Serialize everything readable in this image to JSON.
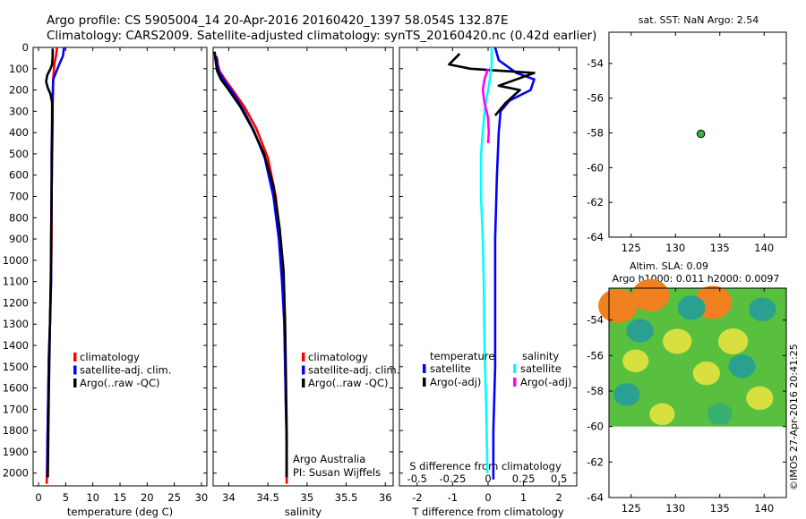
{
  "header": {
    "title_line1": "Argo profile: CS 5905004_14 20-Apr-2016 20160420_1397 58.054S 132.87E",
    "title_line2": "Climatology: CARS2009. Satellite-adjusted climatology: synTS_20160420.nc (0.42d earlier)"
  },
  "colors": {
    "climatology": "#ff0000",
    "satellite_adj": "#0000ff",
    "argo": "#000000",
    "s_satellite": "#00ffff",
    "s_argo": "#ff00ff",
    "float_marker": "#3cb043"
  },
  "chart_data": [
    {
      "type": "line",
      "panel": "temperature",
      "xlabel": "temperature (deg C)",
      "xlim": [
        -1,
        31
      ],
      "xticks": [
        0,
        5,
        10,
        15,
        20,
        25,
        30
      ],
      "xtick_labels": [
        "0",
        "5",
        "10",
        "15",
        "20",
        "25",
        "30"
      ],
      "ylim": [
        2060,
        0
      ],
      "yticks": [
        0,
        100,
        200,
        300,
        400,
        500,
        600,
        700,
        800,
        900,
        1000,
        1100,
        1200,
        1300,
        1400,
        1500,
        1600,
        1700,
        1800,
        1900,
        2000
      ],
      "ytick_labels": [
        "0",
        "100",
        "200",
        "300",
        "400",
        "500",
        "600",
        "700",
        "800",
        "900",
        "1000",
        "1100",
        "1200",
        "1300",
        "1400",
        "1500",
        "1600",
        "1700",
        "1800",
        "1900",
        "2000"
      ],
      "legend": [
        "climatology",
        "satellite-adj. clim.",
        "Argo(..raw -QC)"
      ],
      "series": [
        {
          "name": "climatology",
          "color": "#ff0000",
          "x": [
            3.4,
            3.2,
            2.9,
            2.7,
            2.6,
            2.6,
            2.5,
            2.4,
            2.4,
            2.3,
            2.2,
            2.1,
            1.9,
            1.8,
            1.7,
            1.6,
            1.5
          ],
          "y": [
            0,
            40,
            80,
            150,
            250,
            350,
            500,
            700,
            900,
            1100,
            1200,
            1300,
            1450,
            1600,
            1750,
            1900,
            2050
          ]
        },
        {
          "name": "satellite-adj. clim.",
          "color": "#0000ff",
          "x": [
            4.7,
            4.5,
            3.8,
            2.7,
            2.6,
            2.5,
            2.4,
            2.4,
            2.3,
            2.3,
            2.2,
            2.1,
            1.9,
            1.8,
            1.7,
            1.6,
            1.6
          ],
          "y": [
            0,
            40,
            80,
            150,
            250,
            350,
            500,
            700,
            900,
            1100,
            1200,
            1300,
            1450,
            1600,
            1750,
            1900,
            2020
          ]
        },
        {
          "name": "Argo(..raw -QC)",
          "color": "#000000",
          "x": [
            2.6,
            2.6,
            2.5,
            2.2,
            1.6,
            1.4,
            1.7,
            2.2,
            2.5,
            2.5,
            2.4,
            2.3,
            2.1,
            1.9,
            1.8,
            1.7
          ],
          "y": [
            5,
            40,
            80,
            100,
            130,
            160,
            190,
            220,
            260,
            400,
            700,
            1000,
            1300,
            1600,
            1800,
            2020
          ]
        }
      ]
    },
    {
      "type": "line",
      "panel": "salinity",
      "xlabel": "salinity",
      "xlim": [
        33.8,
        36.1
      ],
      "xticks": [
        34,
        34.5,
        35,
        35.5,
        36
      ],
      "xtick_labels": [
        "34",
        "34.5",
        "35",
        "35.5",
        "36"
      ],
      "ylim": [
        2060,
        0
      ],
      "legend": [
        "climatology",
        "satellite-adj. clim.",
        "Argo(..raw -QC)"
      ],
      "annotations": [
        "Argo Australia",
        "PI: Susan Wijffels"
      ],
      "series": [
        {
          "name": "climatology",
          "color": "#ff0000",
          "x": [
            33.85,
            33.86,
            33.88,
            33.95,
            34.05,
            34.2,
            34.35,
            34.5,
            34.6,
            34.66,
            34.69,
            34.71,
            34.72,
            34.73,
            34.74,
            34.74,
            34.74
          ],
          "y": [
            50,
            80,
            110,
            150,
            200,
            280,
            380,
            520,
            700,
            900,
            1100,
            1300,
            1500,
            1700,
            1850,
            1950,
            2050
          ]
        },
        {
          "name": "satellite-adj. clim.",
          "color": "#0000ff",
          "x": [
            33.84,
            33.85,
            33.88,
            33.95,
            34.05,
            34.18,
            34.32,
            34.46,
            34.57,
            34.64,
            34.68,
            34.71,
            34.72,
            34.73,
            34.74,
            34.74,
            34.74
          ],
          "y": [
            40,
            80,
            120,
            160,
            210,
            290,
            390,
            520,
            700,
            900,
            1100,
            1300,
            1500,
            1700,
            1850,
            1950,
            2020
          ]
        },
        {
          "name": "Argo(..raw -QC)",
          "color": "#000000",
          "x": [
            33.82,
            33.83,
            33.85,
            33.9,
            34.0,
            34.15,
            34.3,
            34.45,
            34.57,
            34.65,
            34.7,
            34.72,
            34.73,
            34.74,
            34.74
          ],
          "y": [
            20,
            60,
            110,
            150,
            200,
            280,
            380,
            500,
            650,
            850,
            1050,
            1300,
            1550,
            1800,
            2020
          ]
        }
      ]
    },
    {
      "type": "line",
      "panel": "difference",
      "xlabel_bottom": "T difference from climatology",
      "xlabel_top": "S difference from climatology",
      "xlim": [
        -2.5,
        2.5
      ],
      "xticks": [
        -2,
        -1,
        0,
        1,
        2
      ],
      "xtick_labels": [
        "-2",
        "-1",
        "0",
        "1",
        "2"
      ],
      "top_xtick_labels": [
        "-0.5",
        "-0.25",
        "0",
        "0.25",
        "0.5"
      ],
      "ylim": [
        2060,
        0
      ],
      "legend_headers": [
        "temperature",
        "salinity"
      ],
      "legend": [
        "satellite",
        "Argo(-adj)",
        "satellite",
        "Argo(-adj)"
      ],
      "series": [
        {
          "name": "satellite",
          "group": "temperature",
          "color": "#0000ff",
          "x": [
            0.2,
            0.3,
            0.8,
            1.3,
            1.2,
            0.6,
            0.35,
            0.3,
            0.25,
            0.2,
            0.2,
            0.2,
            0.15,
            0.15,
            0.15
          ],
          "y": [
            0,
            60,
            120,
            150,
            200,
            250,
            300,
            400,
            600,
            900,
            1200,
            1500,
            1800,
            2000,
            2030
          ]
        },
        {
          "name": "Argo(-adj)",
          "group": "temperature",
          "color": "#000000",
          "x": [
            -0.8,
            -1.1,
            -0.5,
            0.4,
            1.3,
            0.8,
            0.3,
            0.9,
            0.5,
            0.2
          ],
          "y": [
            30,
            80,
            100,
            110,
            120,
            150,
            180,
            200,
            260,
            320
          ]
        },
        {
          "name": "satellite",
          "group": "salinity",
          "color": "#00ffff",
          "x": [
            0.1,
            0.1,
            0.05,
            -0.1,
            -0.2,
            -0.2,
            -0.15,
            -0.12,
            -0.1,
            -0.05,
            -0.02
          ],
          "y": [
            0,
            80,
            150,
            300,
            500,
            700,
            900,
            1100,
            1400,
            1700,
            2000
          ]
        },
        {
          "name": "Argo(-adj)",
          "group": "salinity",
          "color": "#ff00ff",
          "x": [
            0.0,
            -0.1,
            -0.15,
            -0.1,
            0.0,
            0.02,
            0.0
          ],
          "y": [
            100,
            150,
            200,
            260,
            330,
            400,
            450
          ]
        }
      ]
    },
    {
      "type": "scatter",
      "panel": "map_sst",
      "title": "sat. SST: NaN Argo: 2.54",
      "xlim": [
        122.5,
        142.5
      ],
      "xticks": [
        125,
        130,
        135,
        140
      ],
      "ylim": [
        -64,
        -52.2
      ],
      "yticks": [
        -54,
        -56,
        -58,
        -60,
        -62,
        -64
      ],
      "points": [
        {
          "x": 132.87,
          "y": -58.054,
          "color": "#3cb043"
        }
      ]
    },
    {
      "type": "heatmap",
      "panel": "map_sla",
      "title_line1": "Altim. SLA: 0.09",
      "title_line2": "Argo h1000: 0.011 h2000: 0.0097",
      "xlim": [
        122.5,
        142.5
      ],
      "xticks": [
        125,
        130,
        135,
        140
      ],
      "ylim": [
        -64,
        -52.2
      ],
      "yticks": [
        -54,
        -56,
        -58,
        -60,
        -62,
        -64
      ],
      "data_extent": {
        "x": [
          122.5,
          142.5
        ],
        "y": [
          -60,
          -52.2
        ]
      },
      "blobs": [
        {
          "x": 123.5,
          "y": -53.2,
          "v": 1.0
        },
        {
          "x": 127.2,
          "y": -52.6,
          "v": 0.9
        },
        {
          "x": 134.2,
          "y": -53.0,
          "v": 0.95
        },
        {
          "x": 130.2,
          "y": -55.2,
          "v": 0.45
        },
        {
          "x": 136.5,
          "y": -55.2,
          "v": 0.5
        },
        {
          "x": 133.5,
          "y": -57.0,
          "v": 0.35
        },
        {
          "x": 125.5,
          "y": -56.3,
          "v": 0.3
        },
        {
          "x": 139.5,
          "y": -58.4,
          "v": 0.35
        },
        {
          "x": 128.5,
          "y": -59.3,
          "v": 0.25
        },
        {
          "x": 126.0,
          "y": -54.6,
          "v": -0.35
        },
        {
          "x": 131.8,
          "y": -53.3,
          "v": -0.4
        },
        {
          "x": 139.8,
          "y": -53.4,
          "v": -0.35
        },
        {
          "x": 137.5,
          "y": -56.6,
          "v": -0.35
        },
        {
          "x": 124.5,
          "y": -58.2,
          "v": -0.3
        },
        {
          "x": 135.0,
          "y": -59.3,
          "v": -0.25
        }
      ]
    }
  ],
  "footer": {
    "credit": "©IMOS 27-Apr-2016 20:41:25"
  }
}
